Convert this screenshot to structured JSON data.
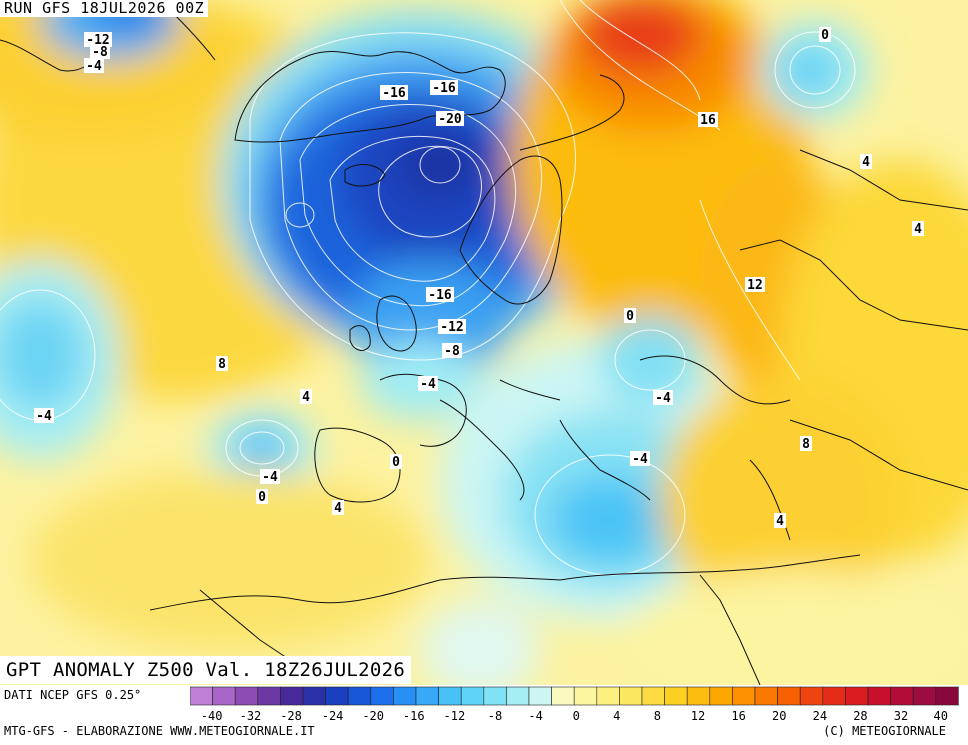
{
  "run_label": "RUN GFS 18JUL2026 00Z",
  "map_title": "GPT ANOMALY Z500 Val. 18Z26JUL2026",
  "data_source": "DATI NCEP GFS 0.25°",
  "credit_left": "MTG-GFS - ELABORAZIONE WWW.METEOGIORNALE.IT",
  "credit_right": "(C) METEOGIORNALE",
  "colorbar": {
    "tick_labels": [
      "-40",
      "-32",
      "-28",
      "-24",
      "-20",
      "-16",
      "-12",
      "-8",
      "-4",
      "0",
      "4",
      "8",
      "12",
      "16",
      "20",
      "24",
      "28",
      "32",
      "40"
    ],
    "colors": [
      "#c080d8",
      "#a866c8",
      "#8c4cb4",
      "#6c38a4",
      "#4a2a9a",
      "#2a30a8",
      "#1a40c0",
      "#1858d8",
      "#1c70ec",
      "#2890f4",
      "#38a8f8",
      "#48c0f8",
      "#60d4f6",
      "#80e2f4",
      "#a4eef4",
      "#ccf6f4",
      "#fafac0",
      "#fcf6a0",
      "#fcf080",
      "#fce860",
      "#fcdc40",
      "#fcd020",
      "#fcbc10",
      "#fca800",
      "#fc9000",
      "#fa7800",
      "#f66000",
      "#ee4410",
      "#e42c18",
      "#d81c20",
      "#c8102c",
      "#b40c38",
      "#9c0c40",
      "#88083c"
    ]
  },
  "contour_labels": [
    {
      "text": "-12"
    },
    {
      "text": "-8"
    },
    {
      "text": "-4"
    },
    {
      "text": "-16"
    },
    {
      "text": "-16"
    },
    {
      "text": "-20"
    },
    {
      "text": "16"
    },
    {
      "text": "0"
    },
    {
      "text": "4"
    },
    {
      "text": "4"
    },
    {
      "text": "12"
    },
    {
      "text": "-16"
    },
    {
      "text": "-12"
    },
    {
      "text": "-8"
    },
    {
      "text": "0"
    },
    {
      "text": "-4"
    },
    {
      "text": "8"
    },
    {
      "text": "4"
    },
    {
      "text": "-4"
    },
    {
      "text": "-4"
    },
    {
      "text": "0"
    },
    {
      "text": "-4"
    },
    {
      "text": "0"
    },
    {
      "text": "4"
    },
    {
      "text": "-4"
    },
    {
      "text": "8"
    },
    {
      "text": "4"
    }
  ]
}
